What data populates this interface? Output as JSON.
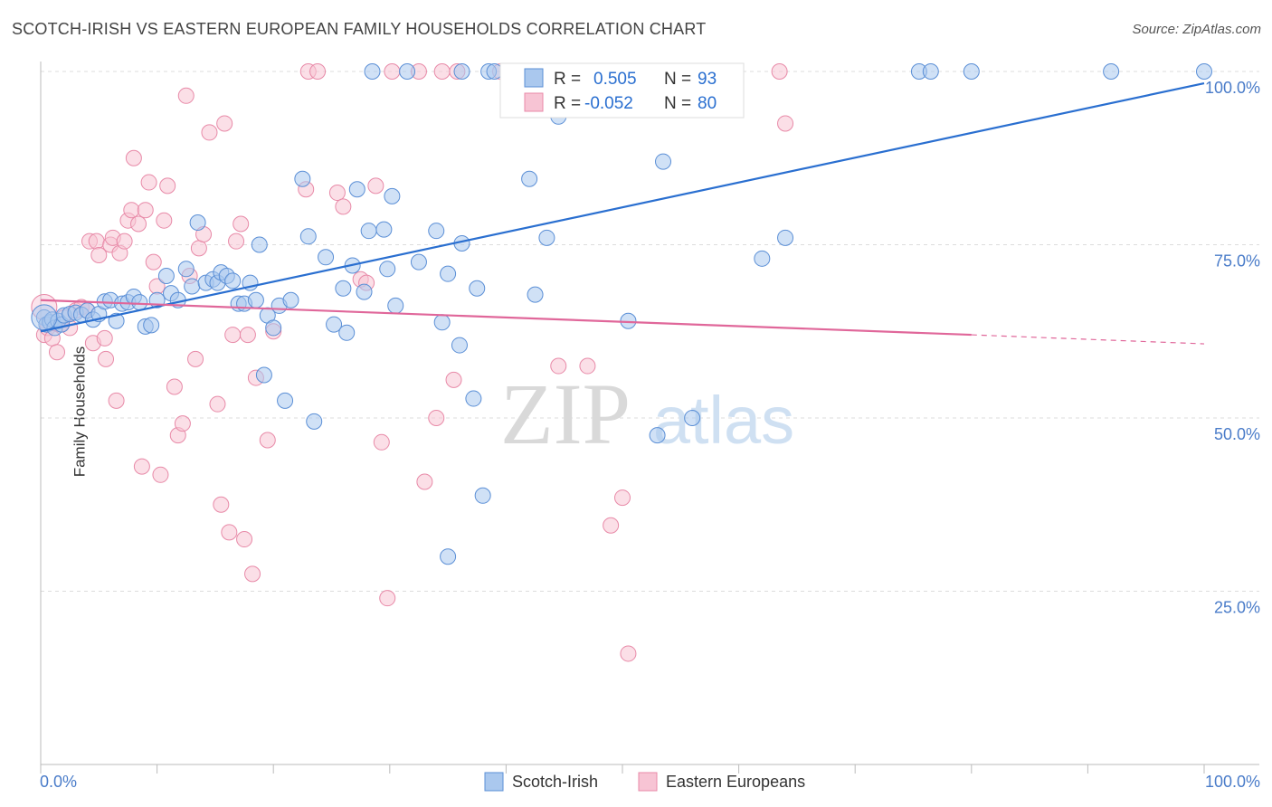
{
  "header": {
    "title": "SCOTCH-IRISH VS EASTERN EUROPEAN FAMILY HOUSEHOLDS CORRELATION CHART",
    "source": "Source: ZipAtlas.com"
  },
  "colors": {
    "blue": "#5b8fd6",
    "blue_fill": "#aac8ee",
    "blue_line": "#2a6fd0",
    "pink": "#e88aa8",
    "pink_fill": "#f7c4d4",
    "pink_line": "#e0679a",
    "tick_label": "#4a7cc9",
    "grid": "#dcdcdc"
  },
  "legend": {
    "rows": [
      {
        "r_label": "R =",
        "r_value": "0.505",
        "n_label": "N =",
        "n_value": "93",
        "series": "blue"
      },
      {
        "r_label": "R =",
        "r_value": "-0.052",
        "n_label": "N =",
        "n_value": "80",
        "series": "pink"
      }
    ]
  },
  "bottom_legend": [
    "Scotch-Irish",
    "Eastern Europeans"
  ],
  "watermark": {
    "zip": "ZIP",
    "atlas": "atlas"
  },
  "chart_data": {
    "type": "scatter",
    "title": "SCOTCH-IRISH VS EASTERN EUROPEAN FAMILY HOUSEHOLDS CORRELATION CHART",
    "xlabel": "",
    "ylabel": "Family Households",
    "xlim": [
      0,
      100
    ],
    "ylim": [
      0,
      100
    ],
    "x_tick_labels": [
      "0.0%",
      "100.0%"
    ],
    "y_tick_labels": [
      {
        "v": 100,
        "label": "100.0%"
      },
      {
        "v": 75,
        "label": "75.0%"
      },
      {
        "v": 50,
        "label": "50.0%"
      },
      {
        "v": 25,
        "label": "25.0%"
      }
    ],
    "grid": true,
    "series": [
      {
        "name": "Scotch-Irish",
        "color": "#5b8fd6",
        "trend": {
          "x0": 0,
          "y0": 62.5,
          "x1": 100,
          "y1": 98.3
        },
        "points": [
          [
            0.3,
            64.5
          ],
          [
            0.5,
            63.5
          ],
          [
            0.8,
            63.8
          ],
          [
            1.0,
            64.2
          ],
          [
            1.2,
            63.0
          ],
          [
            1.5,
            64.0
          ],
          [
            1.8,
            63.5
          ],
          [
            2.0,
            64.8
          ],
          [
            2.5,
            65.0
          ],
          [
            3.0,
            65.2
          ],
          [
            3.5,
            64.9
          ],
          [
            4.0,
            65.5
          ],
          [
            4.5,
            64.2
          ],
          [
            5.0,
            65.0
          ],
          [
            5.5,
            66.8
          ],
          [
            6.0,
            67.0
          ],
          [
            6.5,
            64.0
          ],
          [
            7.0,
            66.5
          ],
          [
            7.5,
            66.7
          ],
          [
            8.0,
            67.5
          ],
          [
            8.5,
            66.7
          ],
          [
            9.0,
            63.2
          ],
          [
            9.5,
            63.4
          ],
          [
            10.0,
            67.0
          ],
          [
            10.8,
            70.5
          ],
          [
            11.2,
            68.0
          ],
          [
            11.8,
            67.0
          ],
          [
            12.5,
            71.5
          ],
          [
            13.0,
            69.0
          ],
          [
            13.5,
            78.2
          ],
          [
            14.2,
            69.5
          ],
          [
            14.8,
            70.0
          ],
          [
            15.2,
            69.5
          ],
          [
            15.5,
            71.0
          ],
          [
            16.0,
            70.5
          ],
          [
            16.5,
            69.8
          ],
          [
            17.0,
            66.5
          ],
          [
            17.5,
            66.5
          ],
          [
            18.0,
            69.5
          ],
          [
            18.5,
            67.0
          ],
          [
            18.8,
            75.0
          ],
          [
            19.2,
            56.2
          ],
          [
            19.5,
            64.8
          ],
          [
            20.0,
            63.0
          ],
          [
            20.5,
            66.2
          ],
          [
            21.0,
            52.5
          ],
          [
            21.5,
            67.0
          ],
          [
            22.5,
            84.5
          ],
          [
            23.0,
            76.2
          ],
          [
            23.5,
            49.5
          ],
          [
            24.5,
            73.2
          ],
          [
            25.2,
            63.5
          ],
          [
            26.0,
            68.7
          ],
          [
            26.3,
            62.3
          ],
          [
            26.8,
            72.0
          ],
          [
            27.2,
            83.0
          ],
          [
            27.8,
            68.2
          ],
          [
            28.2,
            77.0
          ],
          [
            29.5,
            77.2
          ],
          [
            29.8,
            71.5
          ],
          [
            30.2,
            82.0
          ],
          [
            30.5,
            66.2
          ],
          [
            32.5,
            72.5
          ],
          [
            34.0,
            77.0
          ],
          [
            34.5,
            63.8
          ],
          [
            35.0,
            70.8
          ],
          [
            36.0,
            60.5
          ],
          [
            36.2,
            75.2
          ],
          [
            37.2,
            52.8
          ],
          [
            37.5,
            68.7
          ],
          [
            38.0,
            38.8
          ],
          [
            38.5,
            100.0
          ],
          [
            39.0,
            100.0
          ],
          [
            36.2,
            100.0
          ],
          [
            31.5,
            100.0
          ],
          [
            28.5,
            100.0
          ],
          [
            42.0,
            84.5
          ],
          [
            42.5,
            67.8
          ],
          [
            43.5,
            76.0
          ],
          [
            44.5,
            93.5
          ],
          [
            45.5,
            100.0
          ],
          [
            50.5,
            64.0
          ],
          [
            53.0,
            47.5
          ],
          [
            53.5,
            87.0
          ],
          [
            56.0,
            50.0
          ],
          [
            57.5,
            100.0
          ],
          [
            62.0,
            73.0
          ],
          [
            64.0,
            76.0
          ],
          [
            75.5,
            100.0
          ],
          [
            76.5,
            100.0
          ],
          [
            80.0,
            100.0
          ],
          [
            92.0,
            100.0
          ],
          [
            100.0,
            100.0
          ],
          [
            35.0,
            30.0
          ]
        ]
      },
      {
        "name": "Eastern Europeans",
        "color": "#e88aa8",
        "trend": {
          "x0": 0,
          "y0": 67.0,
          "x1": 80,
          "y1": 62.0,
          "dash_to_x": 100,
          "dash_to_y": 60.7
        },
        "points": [
          [
            0.3,
            62.0
          ],
          [
            0.6,
            63.0
          ],
          [
            1.0,
            61.5
          ],
          [
            1.4,
            59.5
          ],
          [
            1.7,
            63.5
          ],
          [
            2.0,
            64.5
          ],
          [
            2.5,
            63.0
          ],
          [
            3.0,
            65.5
          ],
          [
            3.5,
            66.0
          ],
          [
            4.0,
            65.5
          ],
          [
            4.2,
            75.5
          ],
          [
            4.5,
            60.8
          ],
          [
            4.8,
            75.5
          ],
          [
            5.0,
            73.5
          ],
          [
            5.5,
            61.5
          ],
          [
            5.6,
            58.5
          ],
          [
            6.0,
            75.0
          ],
          [
            6.2,
            76.0
          ],
          [
            6.5,
            52.5
          ],
          [
            6.8,
            73.8
          ],
          [
            7.2,
            75.5
          ],
          [
            7.5,
            78.5
          ],
          [
            7.8,
            80.0
          ],
          [
            8.0,
            87.5
          ],
          [
            8.4,
            78.0
          ],
          [
            8.7,
            43.0
          ],
          [
            9.0,
            80.0
          ],
          [
            9.3,
            84.0
          ],
          [
            9.7,
            72.5
          ],
          [
            10.0,
            69.0
          ],
          [
            10.3,
            41.8
          ],
          [
            10.6,
            78.5
          ],
          [
            10.9,
            83.5
          ],
          [
            11.5,
            54.5
          ],
          [
            11.8,
            47.5
          ],
          [
            12.2,
            49.2
          ],
          [
            12.5,
            96.5
          ],
          [
            12.8,
            70.5
          ],
          [
            13.3,
            58.5
          ],
          [
            13.6,
            74.5
          ],
          [
            14.0,
            76.5
          ],
          [
            14.5,
            91.2
          ],
          [
            15.2,
            52.0
          ],
          [
            15.5,
            37.5
          ],
          [
            15.8,
            92.5
          ],
          [
            16.2,
            33.5
          ],
          [
            16.5,
            62.0
          ],
          [
            16.8,
            75.5
          ],
          [
            17.2,
            78.0
          ],
          [
            17.5,
            32.5
          ],
          [
            17.8,
            62.0
          ],
          [
            18.2,
            27.5
          ],
          [
            18.5,
            55.8
          ],
          [
            19.5,
            46.8
          ],
          [
            20.0,
            62.5
          ],
          [
            22.8,
            83.0
          ],
          [
            23.0,
            100.0
          ],
          [
            23.8,
            100.0
          ],
          [
            25.5,
            82.5
          ],
          [
            26.0,
            80.5
          ],
          [
            27.5,
            70.0
          ],
          [
            28.0,
            69.5
          ],
          [
            28.8,
            83.5
          ],
          [
            29.3,
            46.5
          ],
          [
            29.8,
            24.0
          ],
          [
            30.2,
            100.0
          ],
          [
            33.0,
            40.8
          ],
          [
            34.0,
            50.0
          ],
          [
            34.5,
            100.0
          ],
          [
            35.5,
            55.5
          ],
          [
            35.8,
            100.0
          ],
          [
            39.5,
            100.0
          ],
          [
            44.5,
            57.5
          ],
          [
            47.0,
            57.5
          ],
          [
            49.0,
            34.5
          ],
          [
            50.0,
            38.5
          ],
          [
            50.5,
            16.0
          ],
          [
            63.5,
            100.0
          ],
          [
            64.0,
            92.5
          ],
          [
            32.5,
            100.0
          ]
        ]
      }
    ]
  }
}
